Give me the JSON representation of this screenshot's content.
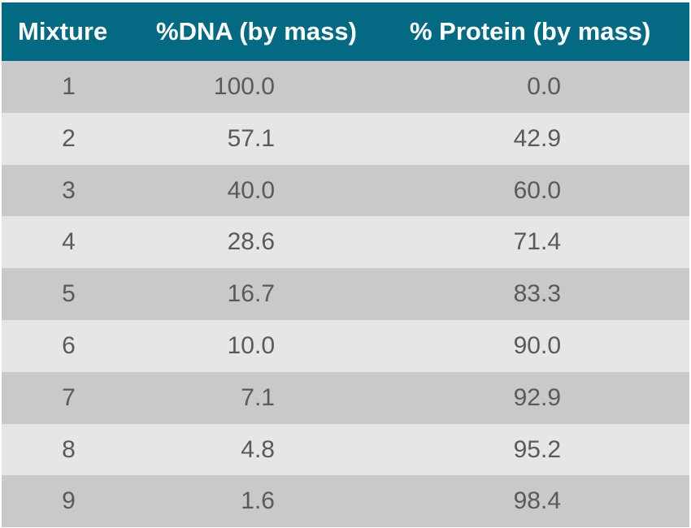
{
  "table": {
    "columns": [
      "Mixture",
      "%DNA (by mass)",
      "% Protein (by mass)"
    ],
    "rows": [
      [
        "1",
        "100.0",
        "0.0"
      ],
      [
        "2",
        "57.1",
        "42.9"
      ],
      [
        "3",
        "40.0",
        "60.0"
      ],
      [
        "4",
        "28.6",
        "71.4"
      ],
      [
        "5",
        "16.7",
        "83.3"
      ],
      [
        "6",
        "10.0",
        "90.0"
      ],
      [
        "7",
        "7.1",
        "92.9"
      ],
      [
        "8",
        "4.8",
        "95.2"
      ],
      [
        "9",
        "1.6",
        "98.4"
      ]
    ],
    "header_color": "#046a84",
    "row_colors": [
      "#c8c9cb",
      "#e5e6e7"
    ]
  }
}
